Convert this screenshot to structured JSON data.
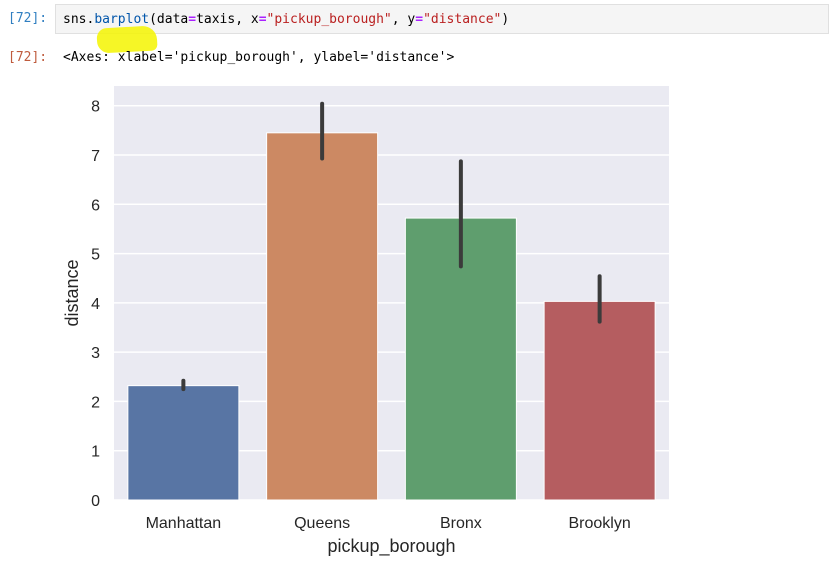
{
  "cell": {
    "input_prompt": "[72]:",
    "output_prompt": "[72]:",
    "code": {
      "module": "sns.",
      "function": "barplot",
      "open": "(data",
      "eq1": "=",
      "arg1": "taxis, x",
      "eq2": "=",
      "str1": "\"pickup_borough\"",
      "arg2": ", y",
      "eq3": "=",
      "str2": "\"distance\"",
      "close": ")"
    },
    "output_repr": "<Axes: xlabel='pickup_borough', ylabel='distance'>"
  },
  "colors": {
    "axes_background": "#eaeaf2",
    "grid": "#ffffff",
    "error_bar": "#3b3b3b",
    "highlight": "#f5f500"
  },
  "chart_data": {
    "type": "bar",
    "categories": [
      "Manhattan",
      "Queens",
      "Bronx",
      "Brooklyn"
    ],
    "values": [
      2.32,
      7.45,
      5.72,
      4.03
    ],
    "error_low": [
      2.25,
      6.93,
      4.74,
      3.62
    ],
    "error_high": [
      2.42,
      8.04,
      6.87,
      4.54
    ],
    "colors": [
      "#5875a4",
      "#cc8963",
      "#5f9e6e",
      "#b55d60"
    ],
    "xlabel": "pickup_borough",
    "ylabel": "distance",
    "yticks": [
      0,
      1,
      2,
      3,
      4,
      5,
      6,
      7,
      8
    ],
    "ylim": [
      0,
      8.4
    ],
    "grid": true,
    "style": "seaborn darkgrid"
  }
}
